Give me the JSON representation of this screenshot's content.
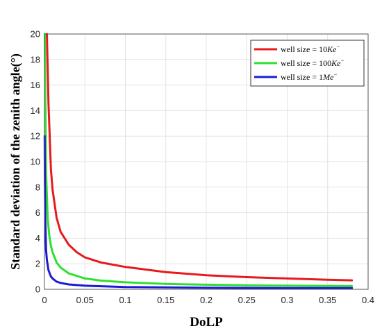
{
  "chart_data": {
    "type": "line",
    "title": "",
    "xlabel": "DoLP",
    "ylabel": "Standard deviation of the zenith angle(°)",
    "xlim": [
      0,
      0.4
    ],
    "ylim": [
      0,
      20
    ],
    "xticks": [
      "0",
      "0.05",
      "0.1",
      "0.15",
      "0.2",
      "0.25",
      "0.3",
      "0.35",
      "0.4"
    ],
    "yticks": [
      "0",
      "2",
      "4",
      "6",
      "8",
      "10",
      "12",
      "14",
      "16",
      "18",
      "20"
    ],
    "grid": true,
    "legend_position": "top-right",
    "series": [
      {
        "name": "well size = 10Ke⁻",
        "label_prefix": "well size = 10",
        "label_unit": "Ke",
        "label_sup": "−",
        "color": "#e8191c",
        "x": [
          0.003,
          0.005,
          0.008,
          0.01,
          0.015,
          0.02,
          0.03,
          0.04,
          0.05,
          0.07,
          0.1,
          0.15,
          0.2,
          0.25,
          0.3,
          0.35,
          0.38
        ],
        "y": [
          20,
          14.6,
          9.4,
          7.8,
          5.6,
          4.5,
          3.5,
          2.9,
          2.5,
          2.1,
          1.75,
          1.35,
          1.1,
          0.95,
          0.85,
          0.75,
          0.7
        ]
      },
      {
        "name": "well size = 100Ke⁻",
        "label_prefix": "well size = 100",
        "label_unit": "Ke",
        "label_sup": "−",
        "color": "#2ee02e",
        "x": [
          0.0005,
          0.001,
          0.002,
          0.004,
          0.006,
          0.008,
          0.01,
          0.015,
          0.02,
          0.03,
          0.05,
          0.07,
          0.1,
          0.15,
          0.2,
          0.25,
          0.3,
          0.38
        ],
        "y": [
          20,
          15.5,
          9.2,
          5.5,
          4.2,
          3.4,
          2.9,
          2.1,
          1.7,
          1.25,
          0.85,
          0.68,
          0.55,
          0.42,
          0.36,
          0.31,
          0.28,
          0.25
        ]
      },
      {
        "name": "well size = 1Me⁻",
        "label_prefix": "well size = 1",
        "label_unit": "Me",
        "label_sup": "−",
        "color": "#1a1ad6",
        "x": [
          0.0003,
          0.0005,
          0.001,
          0.002,
          0.003,
          0.005,
          0.008,
          0.01,
          0.015,
          0.02,
          0.03,
          0.05,
          0.1,
          0.2,
          0.3,
          0.38
        ],
        "y": [
          12,
          8.5,
          5.5,
          3.1,
          2.3,
          1.5,
          1.0,
          0.85,
          0.6,
          0.5,
          0.38,
          0.28,
          0.18,
          0.12,
          0.1,
          0.09
        ]
      }
    ]
  }
}
